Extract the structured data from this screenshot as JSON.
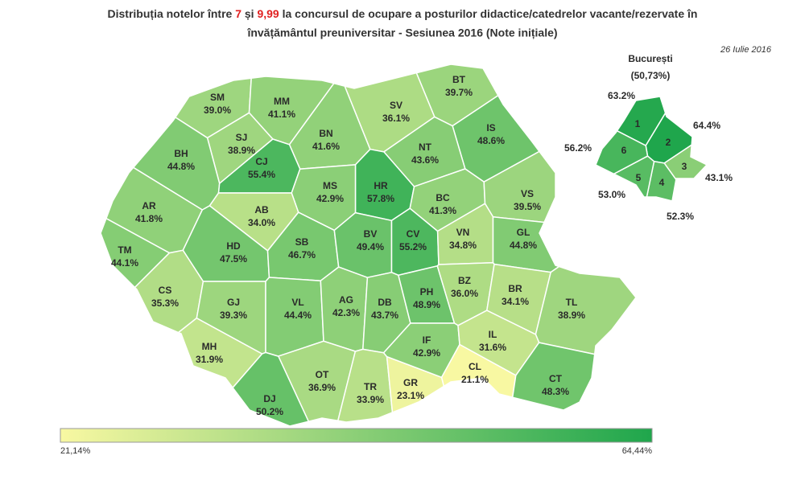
{
  "title": {
    "line1": [
      {
        "text": "Distribuția notelor între "
      },
      {
        "text": "7",
        "color": "#e02020"
      },
      {
        "text": " și "
      },
      {
        "text": "9,99",
        "color": "#e02020"
      },
      {
        "text": " la concursul de ocupare a posturilor didactice/catedrelor vacante/rezervate în"
      }
    ],
    "line2": "învățământul preuniversitar - Sesiunea 2016 (Note inițiale)"
  },
  "date": "26 Iulie 2016",
  "legend": {
    "min": {
      "value": 21.14,
      "label": "21,14%"
    },
    "max": {
      "value": 64.44,
      "label": "64,44%"
    },
    "min_color": "#f8f8a2",
    "max_color": "#1fa64c"
  },
  "counties": [
    {
      "code": "SM",
      "value": 39.0,
      "value_label": "39.0%"
    },
    {
      "code": "MM",
      "value": 41.1,
      "value_label": "41.1%"
    },
    {
      "code": "BT",
      "value": 39.7,
      "value_label": "39.7%"
    },
    {
      "code": "SV",
      "value": 36.1,
      "value_label": "36.1%"
    },
    {
      "code": "SJ",
      "value": 38.9,
      "value_label": "38.9%"
    },
    {
      "code": "BN",
      "value": 41.6,
      "value_label": "41.6%"
    },
    {
      "code": "IS",
      "value": 48.6,
      "value_label": "48.6%"
    },
    {
      "code": "BH",
      "value": 44.8,
      "value_label": "44.8%"
    },
    {
      "code": "CJ",
      "value": 55.4,
      "value_label": "55.4%"
    },
    {
      "code": "NT",
      "value": 43.6,
      "value_label": "43.6%"
    },
    {
      "code": "HR",
      "value": 57.8,
      "value_label": "57.8%"
    },
    {
      "code": "MS",
      "value": 42.9,
      "value_label": "42.9%"
    },
    {
      "code": "AR",
      "value": 41.8,
      "value_label": "41.8%"
    },
    {
      "code": "AB",
      "value": 34.0,
      "value_label": "34.0%"
    },
    {
      "code": "BC",
      "value": 41.3,
      "value_label": "41.3%"
    },
    {
      "code": "VS",
      "value": 39.5,
      "value_label": "39.5%"
    },
    {
      "code": "TM",
      "value": 44.1,
      "value_label": "44.1%"
    },
    {
      "code": "HD",
      "value": 47.5,
      "value_label": "47.5%"
    },
    {
      "code": "SB",
      "value": 46.7,
      "value_label": "46.7%"
    },
    {
      "code": "BV",
      "value": 49.4,
      "value_label": "49.4%"
    },
    {
      "code": "CV",
      "value": 55.2,
      "value_label": "55.2%"
    },
    {
      "code": "VN",
      "value": 34.8,
      "value_label": "34.8%"
    },
    {
      "code": "GL",
      "value": 44.8,
      "value_label": "44.8%"
    },
    {
      "code": "CS",
      "value": 35.3,
      "value_label": "35.3%"
    },
    {
      "code": "GJ",
      "value": 39.3,
      "value_label": "39.3%"
    },
    {
      "code": "VL",
      "value": 44.4,
      "value_label": "44.4%"
    },
    {
      "code": "AG",
      "value": 42.3,
      "value_label": "42.3%"
    },
    {
      "code": "DB",
      "value": 43.7,
      "value_label": "43.7%"
    },
    {
      "code": "PH",
      "value": 48.9,
      "value_label": "48.9%"
    },
    {
      "code": "BZ",
      "value": 36.0,
      "value_label": "36.0%"
    },
    {
      "code": "BR",
      "value": 34.1,
      "value_label": "34.1%"
    },
    {
      "code": "TL",
      "value": 38.9,
      "value_label": "38.9%"
    },
    {
      "code": "MH",
      "value": 31.9,
      "value_label": "31.9%"
    },
    {
      "code": "OT",
      "value": 36.9,
      "value_label": "36.9%"
    },
    {
      "code": "DJ",
      "value": 50.2,
      "value_label": "50.2%"
    },
    {
      "code": "TR",
      "value": 33.9,
      "value_label": "33.9%"
    },
    {
      "code": "GR",
      "value": 23.1,
      "value_label": "23.1%"
    },
    {
      "code": "IF",
      "value": 42.9,
      "value_label": "42.9%"
    },
    {
      "code": "IL",
      "value": 31.6,
      "value_label": "31.6%"
    },
    {
      "code": "CL",
      "value": 21.1,
      "value_label": "21.1%"
    },
    {
      "code": "CT",
      "value": 48.3,
      "value_label": "48.3%"
    }
  ],
  "bucharest": {
    "name": "București",
    "value": 50.73,
    "value_label": "(50,73%)",
    "sectors": [
      {
        "label": "1",
        "value": 63.2,
        "value_label": "63.2%"
      },
      {
        "label": "2",
        "value": 64.4,
        "value_label": "64.4%"
      },
      {
        "label": "3",
        "value": 43.1,
        "value_label": "43.1%"
      },
      {
        "label": "4",
        "value": 52.3,
        "value_label": "52.3%"
      },
      {
        "label": "5",
        "value": 53.0,
        "value_label": "53.0%"
      },
      {
        "label": "6",
        "value": 56.2,
        "value_label": "56.2%"
      }
    ]
  }
}
